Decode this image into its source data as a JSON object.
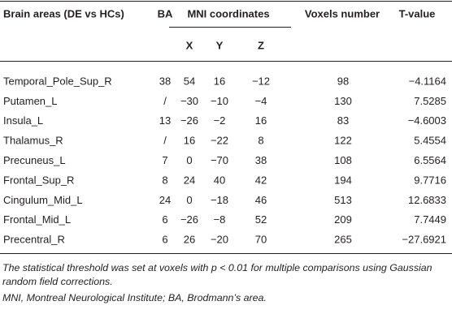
{
  "table": {
    "header": [
      "Brain areas (DE vs HCs)",
      "BA",
      "MNI coordinates",
      "Voxels number",
      "T-value"
    ],
    "subheader": [
      "X",
      "Y",
      "Z"
    ],
    "rows": [
      [
        "Temporal_Pole_Sup_R",
        "38",
        "54",
        "16",
        "−12",
        "98",
        "−4.1164"
      ],
      [
        "Putamen_L",
        "/",
        "−30",
        "−10",
        "−4",
        "130",
        "7.5285"
      ],
      [
        "Insula_L",
        "13",
        "−26",
        "−2",
        "16",
        "83",
        "−4.6003"
      ],
      [
        "Thalamus_R",
        "/",
        "16",
        "−22",
        "8",
        "122",
        "5.4554"
      ],
      [
        "Precuneus_L",
        "7",
        "0",
        "−70",
        "38",
        "108",
        "6.5564"
      ],
      [
        "Frontal_Sup_R",
        "8",
        "24",
        "40",
        "42",
        "194",
        "9.7716"
      ],
      [
        "Cingulum_Mid_L",
        "24",
        "0",
        "−18",
        "46",
        "513",
        "12.6833"
      ],
      [
        "Frontal_Mid_L",
        "6",
        "−26",
        "−8",
        "52",
        "209",
        "7.7449"
      ],
      [
        "Precentral_R",
        "6",
        "26",
        "−20",
        "70",
        "265",
        "−27.6921"
      ]
    ]
  },
  "notes": [
    "The statistical threshold was set at voxels with p < 0.01 for multiple comparisons using Gaussian random field corrections.",
    "MNI, Montreal Neurological Institute; BA, Brodmann’s area."
  ]
}
